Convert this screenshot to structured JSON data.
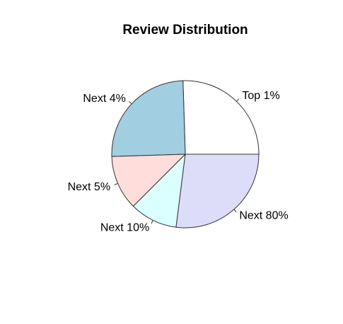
{
  "chart_data": {
    "type": "pie",
    "title": "Review Distribution",
    "start_angle_deg": 0,
    "direction": "counterclockwise",
    "slices": [
      {
        "label": "Top 1%",
        "value": 25.5,
        "color": "#FFFFFF"
      },
      {
        "label": "Next 4%",
        "value": 25.0,
        "color": "#A1CEE0"
      },
      {
        "label": "Next 5%",
        "value": 12.0,
        "color": "#FFDDDB"
      },
      {
        "label": "Next 10%",
        "value": 10.5,
        "color": "#DBFFFF"
      },
      {
        "label": "Next 80%",
        "value": 27.0,
        "color": "#DEDDF9"
      }
    ]
  }
}
